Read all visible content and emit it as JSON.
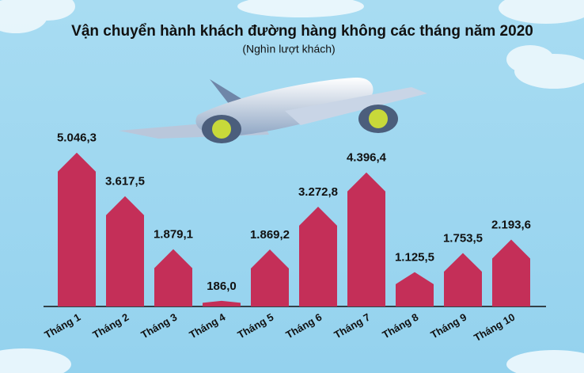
{
  "chart_data": {
    "type": "bar",
    "title": "Vận chuyển hành khách đường hàng không các tháng năm 2020",
    "subtitle": "(Nghìn lượt khách)",
    "categories": [
      "Tháng 1",
      "Tháng 2",
      "Tháng 3",
      "Tháng 4",
      "Tháng 5",
      "Tháng 6",
      "Tháng 7",
      "Tháng 8",
      "Tháng 9",
      "Tháng 10"
    ],
    "values": [
      5046.3,
      3617.5,
      1879.1,
      186.0,
      1869.2,
      3272.8,
      4396.4,
      1125.5,
      1753.5,
      2193.6
    ],
    "value_labels": [
      "5.046,3",
      "3.617,5",
      "1.879,1",
      "186,0",
      "1.869,2",
      "3.272,8",
      "4.396,4",
      "1.125,5",
      "1.753,5",
      "2.193,6"
    ],
    "color": "#c42f58"
  }
}
